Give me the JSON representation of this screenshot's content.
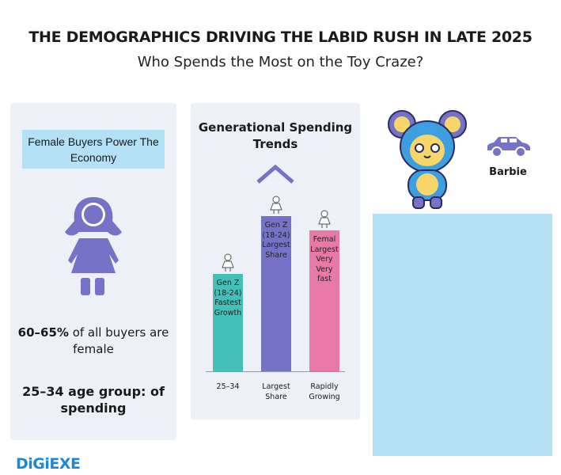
{
  "header": {
    "title": "THE DEMOGRAPHICS DRIVING THE LABID RUSH IN LATE 2025",
    "subtitle": "Who Spends the Most on the Toy Craze?"
  },
  "left_panel": {
    "badge": "Female Buyers Power The Economy",
    "stat1_bold": "60–65%",
    "stat1_rest": " of all buyers are female",
    "stat2": "25–34 age group: of spending",
    "icon": "girl-icon"
  },
  "chart": {
    "title": "Generational Spending Trends",
    "bars": [
      {
        "text": "Gen Z (18-24) Fastest Growth",
        "label": "25–34",
        "color": "#45c0b8",
        "level": 0.63
      },
      {
        "text": "Gen Z (18-24) Largest Share",
        "label": "Largest Share",
        "color": "#7572c8",
        "level": 1.0
      },
      {
        "text": "Femal Largest Very Very fast",
        "label": "Rapidly Growing",
        "color": "#e879a8",
        "level": 0.91
      }
    ]
  },
  "right_panel": {
    "car_label": "Barbie",
    "panel_color": "#b3e0f5"
  },
  "footer": {
    "logo": "DiGiEXE"
  }
}
